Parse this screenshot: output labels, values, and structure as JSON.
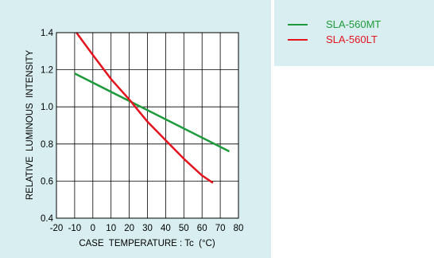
{
  "colors": {
    "panel_bg": "#d9eef1",
    "plot_bg": "#ffffff",
    "axis": "#000000",
    "grid": "#000000"
  },
  "legend": {
    "items": [
      {
        "label": "SLA-560MT",
        "color": "#1e9a3a"
      },
      {
        "label": "SLA-560LT",
        "color": "#e4141f"
      }
    ]
  },
  "chart_data": {
    "type": "line",
    "title": "",
    "xlabel": "CASE  TEMPERATURE : Tc  (°C)",
    "ylabel": "RELATIVE  LUMINOUS  INTENSITY",
    "xlim": [
      -20,
      80
    ],
    "ylim": [
      0.4,
      1.4
    ],
    "xticks": [
      -20,
      -10,
      0,
      10,
      20,
      30,
      40,
      50,
      60,
      70,
      80
    ],
    "xtick_labels": [
      "-20",
      "-10",
      "0",
      "10",
      "20",
      "30",
      "40",
      "50",
      "60",
      "70",
      "80"
    ],
    "yticks": [
      0.4,
      0.6,
      0.8,
      1.0,
      1.2,
      1.4
    ],
    "ytick_labels": [
      "0.4",
      "0.6",
      "0.8",
      "1.0",
      "1.2",
      "1.4"
    ],
    "grid": true,
    "legend_position": "outside-right",
    "series": [
      {
        "name": "SLA-560MT",
        "color": "#1e9a3a",
        "x": [
          -10,
          75
        ],
        "y": [
          1.18,
          0.76
        ]
      },
      {
        "name": "SLA-560LT",
        "color": "#e4141f",
        "x": [
          -9,
          0,
          10,
          20,
          25,
          30,
          40,
          50,
          60,
          66
        ],
        "y": [
          1.4,
          1.28,
          1.15,
          1.04,
          0.98,
          0.92,
          0.82,
          0.72,
          0.63,
          0.59
        ]
      }
    ]
  }
}
